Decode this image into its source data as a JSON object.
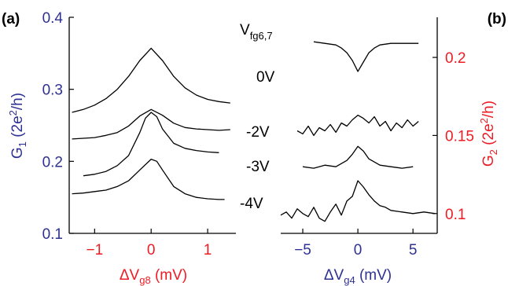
{
  "figure": {
    "voltage_header_main": "V",
    "voltage_header_sub": "fg6,7"
  },
  "colors": {
    "left_axis": "#2e3192",
    "right_axis": "#ed1c24",
    "trace": "#000000",
    "frame": "#000000"
  },
  "chart_data": [
    {
      "type": "line",
      "panel_label": "(a)",
      "xlabel_main": "ΔV",
      "xlabel_sub": "g8",
      "xlabel_unit": " (mV)",
      "ylabel_main": "G",
      "ylabel_sub": "1",
      "ylabel_unit_pre": " (2e",
      "ylabel_sup": "2",
      "ylabel_unit_post": "/h)",
      "xlim": [
        -1.45,
        1.5
      ],
      "ylim": [
        0.1,
        0.4
      ],
      "xticks": [
        -1,
        0,
        1
      ],
      "xtick_labels": [
        "−1",
        "0",
        "1"
      ],
      "yticks": [
        0.1,
        0.2,
        0.3,
        0.4
      ],
      "ytick_labels": [
        "0.1",
        "0.2",
        "0.3",
        "0.4"
      ],
      "series": [
        {
          "name": "0V",
          "x": [
            -1.4,
            -1.2,
            -1.0,
            -0.8,
            -0.6,
            -0.4,
            -0.2,
            0.0,
            0.2,
            0.4,
            0.6,
            0.8,
            1.0,
            1.2,
            1.4
          ],
          "y": [
            0.268,
            0.272,
            0.278,
            0.287,
            0.3,
            0.318,
            0.34,
            0.357,
            0.34,
            0.318,
            0.302,
            0.292,
            0.286,
            0.283,
            0.281
          ]
        },
        {
          "name": "-2V",
          "x": [
            -1.4,
            -1.2,
            -1.0,
            -0.8,
            -0.6,
            -0.4,
            -0.2,
            0.0,
            0.2,
            0.4,
            0.6,
            0.8,
            1.0,
            1.2,
            1.4
          ],
          "y": [
            0.231,
            0.232,
            0.233,
            0.236,
            0.24,
            0.249,
            0.263,
            0.272,
            0.264,
            0.253,
            0.247,
            0.245,
            0.244,
            0.243,
            0.244
          ]
        },
        {
          "name": "-3V",
          "x": [
            -1.2,
            -1.0,
            -0.8,
            -0.6,
            -0.4,
            -0.2,
            -0.1,
            0.0,
            0.1,
            0.2,
            0.4,
            0.6,
            0.8,
            1.0,
            1.2
          ],
          "y": [
            0.18,
            0.182,
            0.186,
            0.194,
            0.208,
            0.24,
            0.26,
            0.268,
            0.262,
            0.245,
            0.225,
            0.218,
            0.215,
            0.213,
            0.212
          ]
        },
        {
          "name": "-4V",
          "x": [
            -1.4,
            -1.2,
            -1.0,
            -0.8,
            -0.6,
            -0.4,
            -0.2,
            0.0,
            0.1,
            0.2,
            0.4,
            0.6,
            0.8,
            1.0,
            1.2,
            1.3
          ],
          "y": [
            0.155,
            0.156,
            0.158,
            0.16,
            0.165,
            0.173,
            0.188,
            0.203,
            0.2,
            0.188,
            0.165,
            0.155,
            0.15,
            0.148,
            0.147,
            0.147
          ]
        }
      ]
    },
    {
      "type": "line",
      "panel_label": "(b)",
      "xlabel_main": "ΔV",
      "xlabel_sub": "g4",
      "xlabel_unit": " (mV)",
      "ylabel_main": "G",
      "ylabel_sub": "2",
      "ylabel_unit_pre": " (2e",
      "ylabel_sup": "2",
      "ylabel_unit_post": "/h)",
      "xlim": [
        -7,
        7.2
      ],
      "ylim": [
        0.0873,
        0.2257
      ],
      "xticks": [
        -5,
        0,
        5
      ],
      "xtick_labels": [
        "−5",
        "0",
        "5"
      ],
      "yticks": [
        0.1,
        0.15,
        0.2
      ],
      "ytick_labels": [
        "0.1",
        "0.15",
        "0.2"
      ],
      "series": [
        {
          "name": "0V",
          "x": [
            -4.0,
            -3.0,
            -2.0,
            -1.5,
            -1.0,
            -0.5,
            0.0,
            0.5,
            1.0,
            1.5,
            2.0,
            3.0,
            4.0,
            5.5
          ],
          "y": [
            0.21,
            0.209,
            0.208,
            0.206,
            0.203,
            0.198,
            0.191,
            0.197,
            0.203,
            0.206,
            0.208,
            0.209,
            0.209,
            0.209
          ]
        },
        {
          "name": "-2V",
          "x": [
            -5.5,
            -5.0,
            -4.5,
            -4.0,
            -3.5,
            -3.0,
            -2.5,
            -2.0,
            -1.5,
            -1.0,
            -0.5,
            0.0,
            0.5,
            1.0,
            1.5,
            2.0,
            2.5,
            3.0,
            3.5,
            4.0,
            4.5,
            5.0,
            5.5
          ],
          "y": [
            0.153,
            0.151,
            0.156,
            0.15,
            0.155,
            0.153,
            0.157,
            0.152,
            0.158,
            0.156,
            0.16,
            0.163,
            0.161,
            0.158,
            0.162,
            0.156,
            0.159,
            0.153,
            0.158,
            0.155,
            0.16,
            0.156,
            0.159
          ]
        },
        {
          "name": "-3V",
          "x": [
            -5.0,
            -4.0,
            -3.0,
            -2.0,
            -1.5,
            -1.0,
            -0.5,
            0.0,
            0.5,
            1.0,
            1.5,
            2.0,
            3.0,
            4.0,
            5.0
          ],
          "y": [
            0.13,
            0.129,
            0.131,
            0.13,
            0.132,
            0.134,
            0.138,
            0.143,
            0.14,
            0.135,
            0.133,
            0.131,
            0.13,
            0.129,
            0.13
          ]
        },
        {
          "name": "-4V",
          "x": [
            -7.0,
            -6.5,
            -6.0,
            -5.5,
            -5.0,
            -4.5,
            -4.0,
            -3.5,
            -3.0,
            -2.5,
            -2.0,
            -1.5,
            -1.0,
            -0.5,
            0.0,
            0.5,
            1.0,
            1.5,
            2.0,
            2.5,
            3.0,
            4.0,
            5.0,
            6.0,
            7.0
          ],
          "y": [
            0.099,
            0.101,
            0.097,
            0.103,
            0.1,
            0.098,
            0.104,
            0.097,
            0.095,
            0.101,
            0.106,
            0.099,
            0.108,
            0.111,
            0.121,
            0.117,
            0.112,
            0.108,
            0.105,
            0.104,
            0.102,
            0.101,
            0.1,
            0.101,
            0.1
          ]
        }
      ]
    }
  ]
}
